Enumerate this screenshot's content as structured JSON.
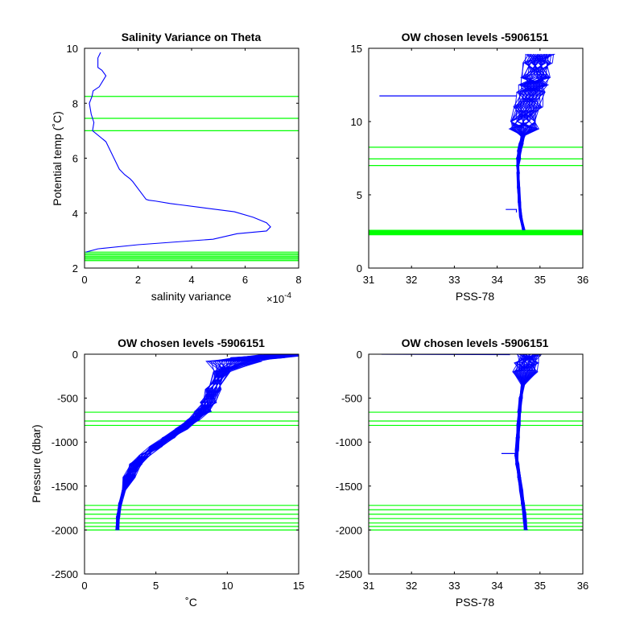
{
  "figure": {
    "background": "#ffffff"
  },
  "chart_data": [
    {
      "type": "line",
      "title": "Salinity Variance on Theta",
      "xlabel": "salinity variance",
      "ylabel": "Potential temp (˚C)",
      "x_exponent_label": "×10",
      "x_exponent_power": "-4",
      "xlim": [
        0,
        8
      ],
      "ylim": [
        2,
        10
      ],
      "xticks": [
        0,
        2,
        4,
        6,
        8
      ],
      "xtick_labels": [
        "0",
        "2",
        "4",
        "6",
        "8"
      ],
      "yticks": [
        2,
        4,
        6,
        8,
        10
      ],
      "ytick_labels": [
        "2",
        "4",
        "6",
        "8",
        "10"
      ],
      "x_scale": 0.0001,
      "grid": false,
      "series": [
        {
          "color": "#0000ff",
          "x": [
            6e-05,
            5e-05,
            5e-05,
            5e-05,
            6.5e-05,
            8e-05,
            5.5e-05,
            3.2e-05,
            2.8e-05,
            1.8e-05,
            2.5e-05,
            3.5e-05,
            3e-05,
            8e-05,
            0.00011,
            0.00013,
            0.00015,
            0.00017,
            0.00018,
            0.00023,
            0.00024,
            0.000265,
            0.00032,
            0.00036,
            0.00044,
            0.00056,
            0.00063,
            0.00068,
            0.000695,
            0.00068,
            0.00057,
            0.00048,
            0.0002,
            5e-05,
            5e-06
          ],
          "y": [
            9.85,
            9.65,
            9.45,
            9.3,
            9.2,
            9.0,
            8.6,
            8.45,
            8.25,
            8.0,
            7.6,
            7.3,
            7.0,
            6.6,
            6.0,
            5.6,
            5.4,
            5.25,
            5.15,
            4.5,
            4.47,
            4.44,
            4.35,
            4.3,
            4.2,
            4.05,
            3.85,
            3.65,
            3.5,
            3.35,
            3.25,
            3.05,
            2.85,
            2.7,
            2.58
          ]
        }
      ],
      "selected_levels": {
        "color": "#00ff00",
        "y": [
          8.25,
          7.45,
          7.0,
          2.58,
          2.52,
          2.47,
          2.42,
          2.37,
          2.32,
          2.27
        ]
      }
    },
    {
      "type": "line",
      "title": "OW chosen levels -5906151",
      "xlabel": "PSS-78",
      "ylabel": "",
      "xlim": [
        31,
        36
      ],
      "ylim": [
        0,
        15
      ],
      "xticks": [
        31,
        32,
        33,
        34,
        35,
        36
      ],
      "xtick_labels": [
        "31",
        "32",
        "33",
        "34",
        "35",
        "36"
      ],
      "yticks": [
        0,
        5,
        10,
        15
      ],
      "ytick_labels": [
        "0",
        "5",
        "10",
        "15"
      ],
      "grid": false,
      "series": [
        {
          "color": "#0000ff",
          "x": [
            34.62,
            34.55,
            34.52,
            34.5,
            34.49,
            34.48,
            34.5,
            34.52,
            34.56,
            34.6,
            34.63,
            34.66,
            34.72,
            34.8,
            34.85,
            34.9,
            34.95,
            35.0
          ],
          "y": [
            2.6,
            3.5,
            4.5,
            5.5,
            6.5,
            7.0,
            7.5,
            8.0,
            8.5,
            9.0,
            9.5,
            10.0,
            11.0,
            12.0,
            12.5,
            13.0,
            14.0,
            14.6
          ]
        }
      ],
      "outliers": [
        {
          "x": [
            31.25,
            34.45
          ],
          "y": [
            11.75,
            11.75
          ]
        },
        {
          "x": [
            34.2,
            34.45,
            34.45
          ],
          "y": [
            4.0,
            4.0,
            3.8
          ]
        }
      ],
      "selected_levels": {
        "color": "#00ff00",
        "y": [
          8.25,
          7.45,
          7.0,
          2.58,
          2.52,
          2.47,
          2.42,
          2.37,
          2.32,
          2.27
        ]
      }
    },
    {
      "type": "line",
      "title": "OW chosen levels -5906151",
      "xlabel": "˚C",
      "ylabel": "Pressure (dbar)",
      "xlim": [
        0,
        15
      ],
      "ylim": [
        -2500,
        0
      ],
      "xticks": [
        0,
        5,
        10,
        15
      ],
      "xtick_labels": [
        "0",
        "5",
        "10",
        "15"
      ],
      "yticks": [
        0,
        -500,
        -1000,
        -1500,
        -2000,
        -2500
      ],
      "ytick_labels": [
        "0",
        "-500",
        "-1000",
        "-1500",
        "-2000",
        "-2500"
      ],
      "grid": false,
      "series": [
        {
          "color": "#0000ff",
          "x": [
            14.5,
            12.0,
            10.5,
            9.6,
            9.0,
            8.7,
            8.3,
            7.6,
            6.8,
            5.9,
            5.0,
            4.2,
            3.6,
            3.1,
            2.75,
            2.5,
            2.35,
            2.3
          ],
          "y": [
            0,
            -40,
            -80,
            -200,
            -400,
            -550,
            -650,
            -750,
            -850,
            -950,
            -1050,
            -1150,
            -1250,
            -1400,
            -1550,
            -1700,
            -1850,
            -2000
          ]
        }
      ],
      "selected_levels": {
        "color": "#00ff00",
        "y": [
          -660,
          -760,
          -810,
          -1720,
          -1770,
          -1820,
          -1870,
          -1920,
          -1960,
          -2000
        ]
      }
    },
    {
      "type": "line",
      "title": "OW chosen levels -5906151",
      "xlabel": "PSS-78",
      "ylabel": "",
      "xlim": [
        31,
        36
      ],
      "ylim": [
        -2500,
        0
      ],
      "xticks": [
        31,
        32,
        33,
        34,
        35,
        36
      ],
      "xtick_labels": [
        "31",
        "32",
        "33",
        "34",
        "35",
        "36"
      ],
      "yticks": [
        0,
        -500,
        -1000,
        -1500,
        -2000,
        -2500
      ],
      "ytick_labels": [
        "0",
        "-500",
        "-1000",
        "-1500",
        "-2000",
        "-2500"
      ],
      "grid": false,
      "series": [
        {
          "color": "#0000ff",
          "x": [
            34.75,
            34.7,
            34.65,
            34.6,
            34.55,
            34.52,
            34.5,
            34.48,
            34.46,
            34.45,
            34.47,
            34.52,
            34.56,
            34.6,
            34.63,
            34.65,
            34.67
          ],
          "y": [
            0,
            -100,
            -200,
            -350,
            -500,
            -650,
            -800,
            -950,
            -1100,
            -1150,
            -1250,
            -1400,
            -1550,
            -1700,
            -1800,
            -1900,
            -2000
          ]
        }
      ],
      "outliers": [
        {
          "x": [
            31.3,
            34.3
          ],
          "y": [
            0,
            -5
          ]
        },
        {
          "x": [
            34.1,
            34.42,
            34.42
          ],
          "y": [
            -1130,
            -1130,
            -1170
          ]
        }
      ],
      "selected_levels": {
        "color": "#00ff00",
        "y": [
          -660,
          -760,
          -810,
          -1720,
          -1770,
          -1820,
          -1870,
          -1920,
          -1960,
          -2000
        ]
      }
    }
  ]
}
